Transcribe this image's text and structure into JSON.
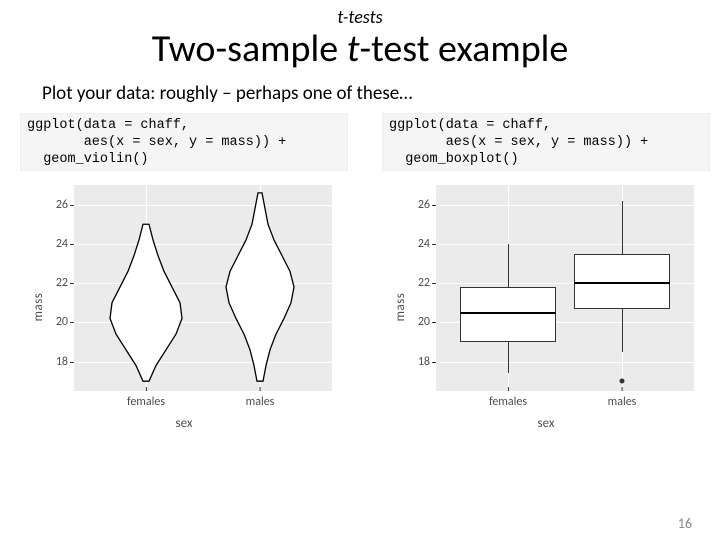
{
  "header": {
    "pretitle_italic": "t",
    "pretitle_rest": "-tests",
    "title_pre": "Two-sample ",
    "title_italic": "t",
    "title_post": "-test example"
  },
  "subtitle": "Plot your data: roughly – perhaps one of these…",
  "left": {
    "code": "ggplot(data = chaff,\n       aes(x = sex, y = mass)) +\n  geom_violin()",
    "chart": {
      "type": "violin",
      "background_color": "#ebebeb",
      "grid_color": "#ffffff",
      "panel_fill": "#ffffff",
      "stroke": "#000000",
      "ylab": "mass",
      "xlab": "sex",
      "ylim": [
        16.5,
        27.0
      ],
      "yticks": [
        18,
        20,
        22,
        24,
        26
      ],
      "categories": [
        "females",
        "males"
      ],
      "violins": {
        "females": {
          "x_center": 72,
          "half_widths": [
            [
              17.0,
              3
            ],
            [
              17.8,
              10
            ],
            [
              18.6,
              20
            ],
            [
              19.4,
              30
            ],
            [
              20.2,
              36
            ],
            [
              21.0,
              34
            ],
            [
              21.8,
              26
            ],
            [
              22.6,
              18
            ],
            [
              23.4,
              12
            ],
            [
              24.2,
              7
            ],
            [
              25.0,
              3
            ]
          ]
        },
        "males": {
          "x_center": 186,
          "half_widths": [
            [
              17.0,
              3
            ],
            [
              17.8,
              6
            ],
            [
              18.6,
              10
            ],
            [
              19.4,
              16
            ],
            [
              20.2,
              24
            ],
            [
              21.0,
              31
            ],
            [
              21.8,
              34
            ],
            [
              22.6,
              30
            ],
            [
              23.4,
              22
            ],
            [
              24.2,
              14
            ],
            [
              25.0,
              8
            ],
            [
              25.8,
              5
            ],
            [
              26.6,
              2
            ]
          ]
        }
      }
    }
  },
  "right": {
    "code": "ggplot(data = chaff,\n       aes(x = sex, y = mass)) +\n  geom_boxplot()",
    "chart": {
      "type": "boxplot",
      "background_color": "#ebebeb",
      "grid_color": "#ffffff",
      "box_fill": "#ffffff",
      "stroke": "#333333",
      "ylab": "mass",
      "xlab": "sex",
      "ylim": [
        16.5,
        27.0
      ],
      "yticks": [
        18,
        20,
        22,
        24,
        26
      ],
      "categories": [
        "females",
        "males"
      ],
      "boxes": {
        "females": {
          "x_center": 72,
          "width": 96,
          "min": 17.4,
          "q1": 19.0,
          "median": 20.5,
          "q3": 21.8,
          "max": 24.0
        },
        "males": {
          "x_center": 186,
          "width": 96,
          "min": 18.5,
          "q1": 20.7,
          "median": 22.0,
          "q3": 23.5,
          "max": 26.2,
          "outliers": [
            17.0
          ]
        }
      }
    }
  },
  "page_number": "16"
}
